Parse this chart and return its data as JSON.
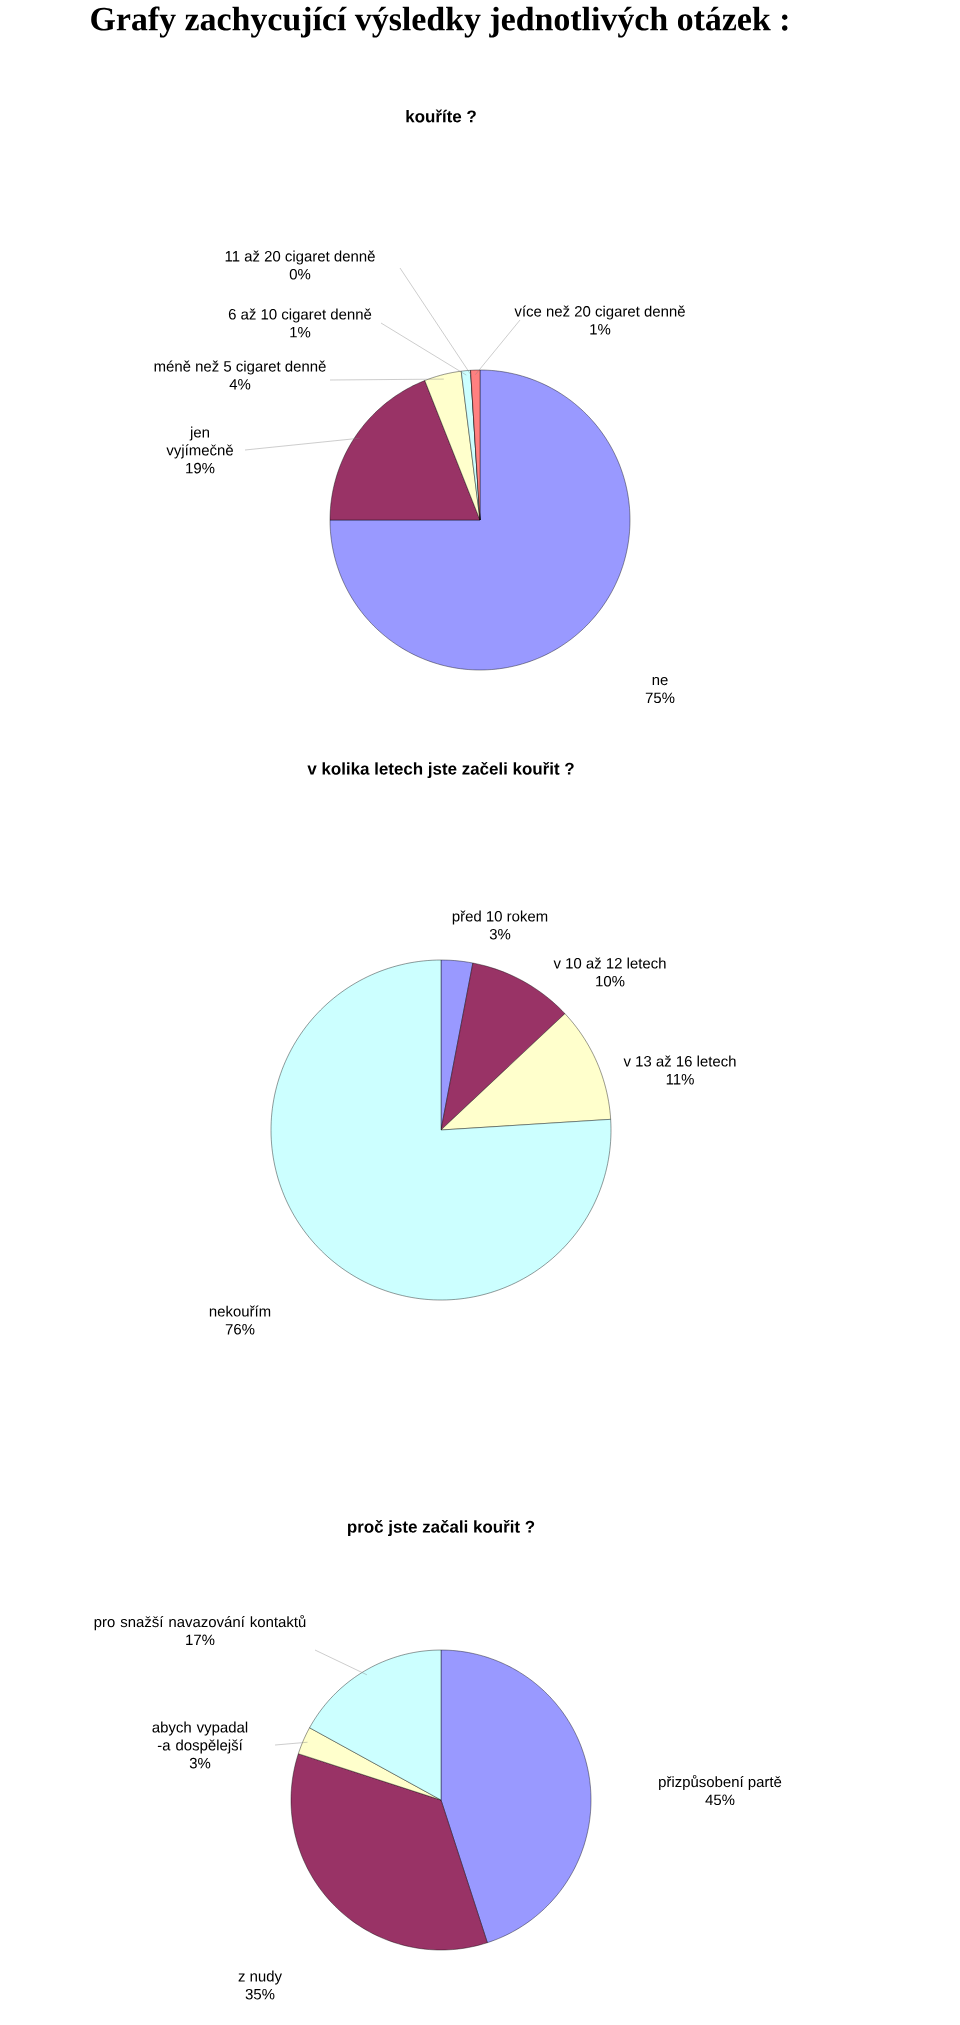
{
  "chart_data": [
    {
      "type": "pie",
      "title": "Grafy zachycující výsledky jednotlivých otázek :",
      "subtitle": "kouříte ?",
      "categories": [
        "ne",
        "jen vyjímečně",
        "méně než 5 cigaret denně",
        "6 až 10 cigaret denně",
        "11 až 20 cigaret denně",
        "více než 20 cigaret denně"
      ],
      "values": [
        75,
        19,
        4,
        1,
        0,
        1
      ],
      "colors": [
        "#9999ff",
        "#993366",
        "#ffffcc",
        "#ccffff",
        "#660066",
        "#ff8080"
      ],
      "value_labels": [
        "75%",
        "19%",
        "4%",
        "1%",
        "0%",
        "1%"
      ]
    },
    {
      "type": "pie",
      "title": "v kolika letech jste začeli kouřit ?",
      "categories": [
        "před 10 rokem",
        "v 10 až 12 letech",
        "v 13 až 16 letech",
        "nekouřím"
      ],
      "values": [
        3,
        10,
        11,
        76
      ],
      "colors": [
        "#9999ff",
        "#993366",
        "#ffffcc",
        "#ccffff"
      ],
      "value_labels": [
        "3%",
        "10%",
        "11%",
        "76%"
      ]
    },
    {
      "type": "pie",
      "title": "proč jste začali kouřit ?",
      "categories": [
        "přizpůsobení partě",
        "z nudy",
        "abych vypadal -a dospělejší",
        "pro snažší navazování kontaktů"
      ],
      "values": [
        45,
        35,
        3,
        17
      ],
      "colors": [
        "#9999ff",
        "#993366",
        "#ffffcc",
        "#ccffff"
      ],
      "value_labels": [
        "45%",
        "35%",
        "3%",
        "17%"
      ]
    }
  ]
}
